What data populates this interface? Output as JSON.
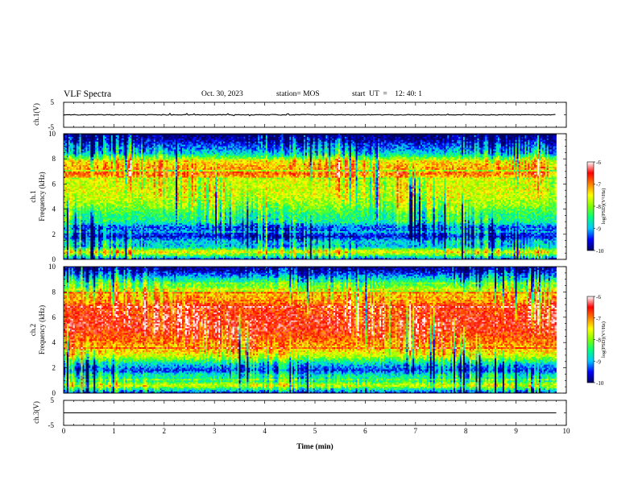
{
  "header": {
    "title": "VLF Spectra",
    "date": "Oct. 30, 2023",
    "station": "station= MOS",
    "start": "start  UT  =    12: 40: 1"
  },
  "chart_data": {
    "type": "heatmap",
    "xlabel": "Time  (min)",
    "xlim": [
      0,
      10
    ],
    "xticks": [
      "0",
      "1",
      "2",
      "3",
      "4",
      "5",
      "6",
      "7",
      "8",
      "9",
      "10"
    ],
    "panels": [
      {
        "id": "ch1-waveform",
        "type": "line",
        "ylabel": "ch.1(V)",
        "ylim": [
          -5,
          5
        ],
        "yticks": [
          "5",
          "-5"
        ],
        "baseline": 0
      },
      {
        "id": "ch1-spectrogram",
        "type": "heatmap",
        "ylabel_top": "ch.1",
        "ylabel": "Frequency  (kHz)",
        "ylim": [
          0,
          10
        ],
        "yticks": [
          "0",
          "2",
          "4",
          "6",
          "8",
          "10"
        ],
        "data_end_min": 9.8
      },
      {
        "id": "ch2-spectrogram",
        "type": "heatmap",
        "ylabel_top": "ch.2",
        "ylabel": "Frequency  (kHz)",
        "ylim": [
          0,
          10
        ],
        "yticks": [
          "0",
          "2",
          "4",
          "6",
          "8",
          "10"
        ],
        "data_end_min": 9.8
      },
      {
        "id": "ch3-waveform",
        "type": "line",
        "ylabel": "ch.3(V)",
        "ylim": [
          -5,
          5
        ],
        "yticks": [
          "5",
          "-5"
        ],
        "baseline": 0
      }
    ],
    "colorbar": {
      "label": "log(PSD)(V²/Hz)",
      "range": [
        -10,
        -6
      ],
      "ticks": [
        "-6",
        "-7",
        "-8",
        "-9",
        "-10"
      ],
      "colors": [
        "#000060",
        "#0000ff",
        "#00c8ff",
        "#00ff80",
        "#80ff00",
        "#ffff00",
        "#ff8000",
        "#ff0000",
        "#ffffff"
      ]
    },
    "ch1_profile": [
      [
        0,
        -9.4
      ],
      [
        0.3,
        -8.3
      ],
      [
        0.6,
        -7.4
      ],
      [
        1.0,
        -8.9
      ],
      [
        1.4,
        -8.8
      ],
      [
        1.8,
        -9.6
      ],
      [
        2.2,
        -9.2
      ],
      [
        2.6,
        -9.3
      ],
      [
        3.0,
        -8.5
      ],
      [
        3.6,
        -8.4
      ],
      [
        4.2,
        -8.0
      ],
      [
        5.0,
        -7.7
      ],
      [
        5.6,
        -7.6
      ],
      [
        6.2,
        -7.7
      ],
      [
        6.8,
        -6.9
      ],
      [
        7.4,
        -7.2
      ],
      [
        7.8,
        -7.4
      ],
      [
        8.4,
        -8.8
      ],
      [
        9.0,
        -9.3
      ],
      [
        9.6,
        -9.8
      ],
      [
        10,
        -10
      ]
    ],
    "ch2_profile": [
      [
        0,
        -9.5
      ],
      [
        0.3,
        -8.6
      ],
      [
        0.6,
        -7.6
      ],
      [
        1.0,
        -8.6
      ],
      [
        1.4,
        -8.6
      ],
      [
        1.8,
        -9.4
      ],
      [
        2.2,
        -9.0
      ],
      [
        2.6,
        -8.3
      ],
      [
        3.0,
        -7.6
      ],
      [
        3.6,
        -7.2
      ],
      [
        4.4,
        -6.8
      ],
      [
        5.0,
        -6.6
      ],
      [
        5.6,
        -6.5
      ],
      [
        6.2,
        -6.6
      ],
      [
        6.8,
        -6.7
      ],
      [
        7.4,
        -7.0
      ],
      [
        7.8,
        -7.3
      ],
      [
        8.4,
        -8.0
      ],
      [
        9.0,
        -8.7
      ],
      [
        9.6,
        -9.6
      ],
      [
        10,
        -10
      ]
    ]
  }
}
